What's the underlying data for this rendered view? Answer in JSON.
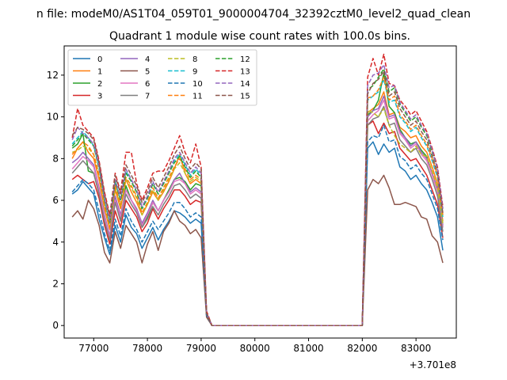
{
  "chart_data": {
    "type": "line",
    "suptitle": "n file: modeM0/AS1T04_059T01_9000004704_32392cztM0_level2_quad_clean",
    "title": "Quadrant 1 module wise count rates with 100.0s bins.",
    "xlabel": "",
    "ylabel": "",
    "x_offset_text": "+3.701e8",
    "xlim": [
      76450,
      83750
    ],
    "ylim": [
      -0.6,
      13.4
    ],
    "x_ticks": [
      {
        "value": 77000,
        "label": "77000"
      },
      {
        "value": 78000,
        "label": "78000"
      },
      {
        "value": 79000,
        "label": "79000"
      },
      {
        "value": 80000,
        "label": "80000"
      },
      {
        "value": 81000,
        "label": "81000"
      },
      {
        "value": 82000,
        "label": "82000"
      },
      {
        "value": 83000,
        "label": "83000"
      }
    ],
    "y_ticks": [
      {
        "value": 0,
        "label": "0"
      },
      {
        "value": 2,
        "label": "2"
      },
      {
        "value": 4,
        "label": "4"
      },
      {
        "value": 6,
        "label": "6"
      },
      {
        "value": 8,
        "label": "8"
      },
      {
        "value": 10,
        "label": "10"
      },
      {
        "value": 12,
        "label": "12"
      }
    ],
    "x": [
      76600,
      76700,
      76800,
      76900,
      77000,
      77100,
      77200,
      77300,
      77400,
      77500,
      77600,
      77700,
      77800,
      77900,
      78000,
      78100,
      78200,
      78300,
      78400,
      78500,
      78600,
      78700,
      78800,
      78900,
      79000,
      79100,
      79200,
      79400,
      79700,
      80000,
      80500,
      81000,
      81500,
      82000,
      82100,
      82200,
      82300,
      82400,
      82500,
      82600,
      82700,
      82800,
      82900,
      83000,
      83100,
      83200,
      83300,
      83400,
      83500
    ],
    "legend": {
      "placement": "top-left",
      "columns": 4
    },
    "series": [
      {
        "name": "0",
        "color": "#1f77b4",
        "dash": "solid",
        "values": [
          6.3,
          6.5,
          6.9,
          6.6,
          6.3,
          5.1,
          4.2,
          3.4,
          4.8,
          4.0,
          5.3,
          4.7,
          4.4,
          3.7,
          4.2,
          4.7,
          4.1,
          4.6,
          5.0,
          5.5,
          5.4,
          5.2,
          4.9,
          5.1,
          4.9,
          0.5,
          0,
          0,
          0,
          0,
          0,
          0,
          0,
          0,
          8.5,
          8.8,
          8.2,
          8.7,
          8.3,
          8.5,
          7.6,
          7.4,
          7.0,
          7.2,
          6.8,
          6.5,
          5.9,
          5.2,
          3.6
        ]
      },
      {
        "name": "1",
        "color": "#ff7f0e",
        "dash": "solid",
        "values": [
          8.0,
          8.5,
          8.8,
          8.3,
          8.0,
          7.0,
          5.6,
          4.6,
          6.5,
          5.6,
          7.0,
          6.4,
          5.9,
          5.3,
          5.8,
          6.4,
          6.0,
          6.4,
          6.9,
          7.5,
          8.2,
          7.3,
          6.8,
          7.0,
          6.8,
          0.6,
          0,
          0,
          0,
          0,
          0,
          0,
          0,
          0,
          10.2,
          10.4,
          10.6,
          11.2,
          10.1,
          10.2,
          9.5,
          9.3,
          9.0,
          9.1,
          8.6,
          8.3,
          7.6,
          6.8,
          5.0
        ]
      },
      {
        "name": "2",
        "color": "#2ca02c",
        "dash": "solid",
        "values": [
          8.5,
          8.7,
          9.2,
          7.4,
          7.3,
          6.3,
          5.0,
          4.1,
          6.0,
          5.1,
          6.7,
          6.0,
          5.6,
          4.8,
          5.2,
          5.9,
          5.5,
          6.0,
          6.5,
          7.0,
          7.1,
          6.9,
          6.5,
          6.8,
          6.7,
          0.6,
          0,
          0,
          0,
          0,
          0,
          0,
          0,
          0,
          10.1,
          10.3,
          10.8,
          12.1,
          10.5,
          10.2,
          9.4,
          9.0,
          8.7,
          8.8,
          8.4,
          8.1,
          7.3,
          6.5,
          4.7
        ]
      },
      {
        "name": "3",
        "color": "#d62728",
        "dash": "solid",
        "values": [
          7.0,
          7.2,
          7.0,
          6.8,
          6.9,
          6.1,
          4.8,
          3.9,
          5.5,
          4.7,
          6.0,
          5.6,
          5.2,
          4.5,
          4.9,
          5.6,
          5.1,
          5.6,
          6.0,
          6.5,
          6.5,
          6.2,
          5.8,
          6.0,
          5.9,
          0.5,
          0,
          0,
          0,
          0,
          0,
          0,
          0,
          0,
          9.6,
          9.8,
          9.2,
          9.7,
          9.2,
          9.3,
          8.5,
          8.2,
          7.9,
          8.0,
          7.6,
          7.2,
          6.5,
          5.8,
          4.2
        ]
      },
      {
        "name": "4",
        "color": "#9467bd",
        "dash": "solid",
        "values": [
          7.8,
          8.0,
          8.3,
          8.0,
          7.7,
          6.6,
          5.3,
          4.3,
          6.2,
          5.3,
          6.5,
          6.0,
          5.6,
          4.9,
          5.4,
          6.0,
          5.5,
          6.0,
          6.4,
          7.0,
          7.3,
          6.8,
          6.4,
          6.6,
          6.4,
          0.6,
          0,
          0,
          0,
          0,
          0,
          0,
          0,
          0,
          10.0,
          10.3,
          10.4,
          11.0,
          10.0,
          10.1,
          9.3,
          9.0,
          8.6,
          8.8,
          8.3,
          8.0,
          7.3,
          6.6,
          4.8
        ]
      },
      {
        "name": "5",
        "color": "#8c564b",
        "dash": "solid",
        "values": [
          5.2,
          5.5,
          5.1,
          6.0,
          5.6,
          4.8,
          3.5,
          3.0,
          4.5,
          3.7,
          4.8,
          4.4,
          4.0,
          3.0,
          3.9,
          4.5,
          3.6,
          4.5,
          4.9,
          5.5,
          5.0,
          4.8,
          4.4,
          4.6,
          4.2,
          0.4,
          0,
          0,
          0,
          0,
          0,
          0,
          0,
          0,
          6.5,
          7.0,
          6.8,
          7.2,
          6.6,
          5.8,
          5.8,
          5.9,
          5.8,
          5.7,
          5.2,
          5.1,
          4.3,
          4.0,
          3.0
        ]
      },
      {
        "name": "6",
        "color": "#e377c2",
        "dash": "solid",
        "values": [
          7.5,
          7.8,
          8.1,
          7.9,
          7.6,
          6.5,
          5.2,
          4.2,
          6.0,
          5.2,
          6.5,
          6.0,
          5.5,
          4.8,
          5.3,
          5.9,
          5.5,
          6.0,
          6.4,
          6.9,
          7.0,
          6.8,
          6.3,
          6.5,
          6.3,
          0.6,
          0,
          0,
          0,
          0,
          0,
          0,
          0,
          0,
          9.8,
          10.1,
          10.3,
          10.8,
          9.9,
          10.0,
          9.2,
          8.9,
          8.5,
          8.7,
          8.2,
          7.9,
          7.2,
          6.4,
          4.7
        ]
      },
      {
        "name": "7",
        "color": "#7f7f7f",
        "dash": "solid",
        "values": [
          7.3,
          7.6,
          7.9,
          7.6,
          7.3,
          6.3,
          5.0,
          4.1,
          5.9,
          5.0,
          6.3,
          5.8,
          5.4,
          4.7,
          5.1,
          5.7,
          5.3,
          5.8,
          6.2,
          6.7,
          6.8,
          6.5,
          6.1,
          6.3,
          6.1,
          0.6,
          0,
          0,
          0,
          0,
          0,
          0,
          0,
          0,
          9.6,
          9.9,
          10.0,
          10.5,
          9.6,
          9.7,
          8.9,
          8.6,
          8.3,
          8.5,
          8.0,
          7.7,
          7.0,
          6.2,
          4.5
        ]
      },
      {
        "name": "8",
        "color": "#bcbd22",
        "dash": "dashed",
        "values": [
          8.3,
          8.4,
          8.6,
          8.5,
          8.2,
          7.2,
          5.7,
          4.7,
          6.6,
          5.7,
          7.0,
          6.6,
          6.1,
          5.3,
          5.8,
          6.5,
          6.0,
          6.5,
          7.0,
          7.5,
          7.8,
          7.3,
          6.9,
          7.1,
          6.9,
          0.6,
          0,
          0,
          0,
          0,
          0,
          0,
          0,
          0,
          10.3,
          10.2,
          10.0,
          10.4,
          9.6,
          9.1,
          8.7,
          8.5,
          8.3,
          8.6,
          8.2,
          8.1,
          7.4,
          6.6,
          4.9
        ]
      },
      {
        "name": "9",
        "color": "#17becf",
        "dash": "dashed",
        "values": [
          8.7,
          9.0,
          9.3,
          9.0,
          8.6,
          7.6,
          6.0,
          4.9,
          6.9,
          6.0,
          7.4,
          6.9,
          6.4,
          5.6,
          6.1,
          6.8,
          6.3,
          6.8,
          7.3,
          7.9,
          8.2,
          7.7,
          7.2,
          7.5,
          7.2,
          0.6,
          0,
          0,
          0,
          0,
          0,
          0,
          0,
          0,
          10.8,
          11.0,
          11.2,
          11.8,
          10.7,
          10.8,
          10.0,
          9.7,
          9.3,
          9.5,
          9.0,
          8.6,
          7.9,
          7.1,
          5.2
        ]
      },
      {
        "name": "10",
        "color": "#1f77b4",
        "dash": "dashed",
        "values": [
          6.4,
          6.7,
          7.0,
          6.8,
          6.5,
          5.5,
          4.4,
          3.6,
          5.1,
          4.3,
          5.6,
          5.0,
          4.6,
          4.0,
          4.5,
          5.0,
          4.6,
          5.0,
          5.4,
          5.9,
          5.9,
          5.6,
          5.2,
          5.4,
          5.2,
          0.5,
          0,
          0,
          0,
          0,
          0,
          0,
          0,
          0,
          8.8,
          9.1,
          9.0,
          9.6,
          8.8,
          8.9,
          8.1,
          7.9,
          7.5,
          7.7,
          7.3,
          7.0,
          6.3,
          5.6,
          4.1
        ]
      },
      {
        "name": "11",
        "color": "#ff7f0e",
        "dash": "dashed",
        "values": [
          8.2,
          8.5,
          8.8,
          8.6,
          8.2,
          7.2,
          5.8,
          4.7,
          6.7,
          5.8,
          7.1,
          6.7,
          6.2,
          5.4,
          5.9,
          6.6,
          6.1,
          6.6,
          7.1,
          7.6,
          8.0,
          7.5,
          7.0,
          7.2,
          7.0,
          0.6,
          0,
          0,
          0,
          0,
          0,
          0,
          0,
          0,
          10.9,
          11.0,
          11.3,
          11.9,
          10.8,
          11.0,
          10.1,
          9.8,
          9.4,
          9.6,
          9.1,
          8.7,
          8.0,
          7.2,
          5.3
        ]
      },
      {
        "name": "12",
        "color": "#2ca02c",
        "dash": "dashed",
        "values": [
          8.6,
          8.9,
          9.2,
          8.9,
          8.6,
          7.5,
          6.0,
          4.9,
          6.9,
          6.0,
          7.3,
          6.9,
          6.4,
          5.6,
          6.1,
          6.8,
          6.3,
          6.8,
          7.3,
          7.8,
          8.1,
          7.6,
          7.1,
          7.4,
          7.1,
          0.6,
          0,
          0,
          0,
          0,
          0,
          0,
          0,
          0,
          11.3,
          11.5,
          11.9,
          12.3,
          11.2,
          11.4,
          10.6,
          10.2,
          9.8,
          10.0,
          9.5,
          9.1,
          8.3,
          7.5,
          5.6
        ]
      },
      {
        "name": "13",
        "color": "#d62728",
        "dash": "dashed",
        "values": [
          9.0,
          10.4,
          9.6,
          9.3,
          9.0,
          7.9,
          6.4,
          5.3,
          7.3,
          6.4,
          8.3,
          8.3,
          6.8,
          6.0,
          6.6,
          7.3,
          7.4,
          7.4,
          7.9,
          8.5,
          9.1,
          8.3,
          7.8,
          8.7,
          7.6,
          0.7,
          0,
          0,
          0,
          0,
          0,
          0,
          0,
          0,
          11.9,
          12.8,
          12.0,
          13.0,
          11.6,
          11.5,
          10.8,
          10.5,
          10.1,
          10.3,
          9.8,
          9.3,
          8.5,
          7.6,
          5.7
        ]
      },
      {
        "name": "14",
        "color": "#9467bd",
        "dash": "dashed",
        "values": [
          8.9,
          9.5,
          9.2,
          9.0,
          8.7,
          7.6,
          6.1,
          5.0,
          7.0,
          6.1,
          7.5,
          7.0,
          6.5,
          5.7,
          6.2,
          6.9,
          6.4,
          6.9,
          7.4,
          8.0,
          8.3,
          7.8,
          7.3,
          7.6,
          7.3,
          0.6,
          0,
          0,
          0,
          0,
          0,
          0,
          0,
          0,
          11.5,
          12.0,
          12.1,
          12.5,
          11.4,
          11.5,
          10.7,
          10.3,
          9.9,
          10.1,
          9.6,
          9.2,
          8.4,
          7.5,
          5.6
        ]
      },
      {
        "name": "15",
        "color": "#8c564b",
        "dash": "dashed",
        "values": [
          9.1,
          9.5,
          9.4,
          9.2,
          8.9,
          7.8,
          6.3,
          5.2,
          7.2,
          6.3,
          7.7,
          7.2,
          6.7,
          5.9,
          6.4,
          7.1,
          6.6,
          7.1,
          7.6,
          8.2,
          8.6,
          8.0,
          7.5,
          7.8,
          7.5,
          0.6,
          0,
          0,
          0,
          0,
          0,
          0,
          0,
          0,
          11.1,
          11.6,
          11.8,
          12.2,
          11.0,
          11.2,
          10.4,
          10.0,
          9.6,
          9.8,
          9.3,
          8.9,
          8.1,
          7.3,
          5.4
        ]
      }
    ]
  }
}
